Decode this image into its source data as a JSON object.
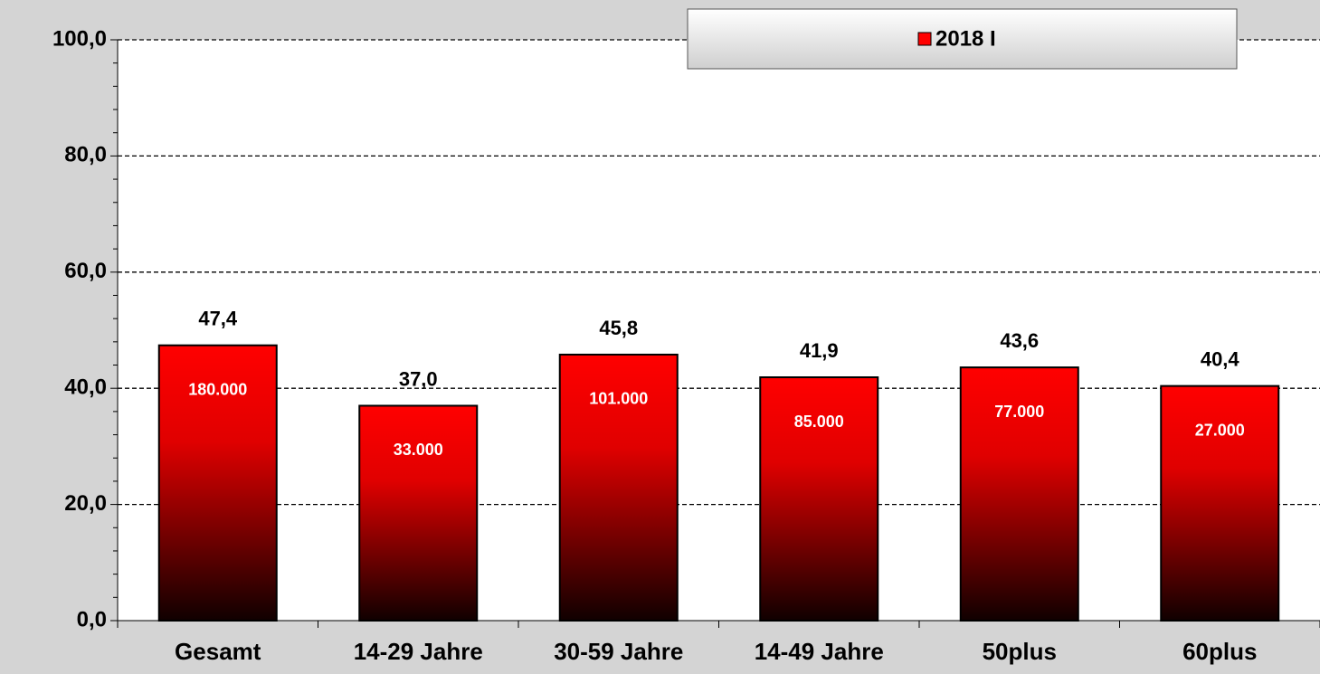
{
  "chart_data": {
    "type": "bar",
    "categories": [
      "Gesamt",
      "14-29 Jahre",
      "30-59 Jahre",
      "14-49 Jahre",
      "50plus",
      "60plus"
    ],
    "series": [
      {
        "name": "2018 I",
        "color": "#ff0000",
        "values": [
          47.4,
          37.0,
          45.8,
          41.9,
          43.6,
          40.4
        ],
        "value_labels": [
          "47,4",
          "37,0",
          "45,8",
          "41,9",
          "43,6",
          "40,4"
        ],
        "inner_labels": [
          "180.000",
          "33.000",
          "101.000",
          "85.000",
          "77.000",
          "27.000"
        ]
      }
    ],
    "ylim": [
      0,
      100
    ],
    "yticks": [
      {
        "value": 0,
        "label": "0,0"
      },
      {
        "value": 20,
        "label": "20,0"
      },
      {
        "value": 40,
        "label": "40,0"
      },
      {
        "value": 60,
        "label": "60,0"
      },
      {
        "value": 80,
        "label": "80,0"
      },
      {
        "value": 100,
        "label": "100,0"
      }
    ],
    "grid": true,
    "legend": "top-right"
  }
}
